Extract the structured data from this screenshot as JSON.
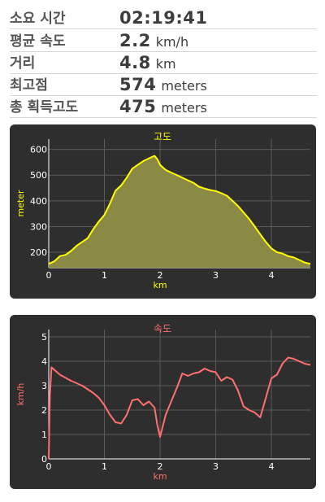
{
  "stats": [
    {
      "label": "소요 시간",
      "value": "02:19:41",
      "unit": ""
    },
    {
      "label": "평균 속도",
      "value": "2.2",
      "unit": "km/h"
    },
    {
      "label": "거리",
      "value": "4.8",
      "unit": "km"
    },
    {
      "label": "최고점",
      "value": "574",
      "unit": "meters"
    },
    {
      "label": "총 획득고도",
      "value": "475",
      "unit": "meters"
    }
  ],
  "chart_data": [
    {
      "type": "area",
      "title": "고도",
      "xlabel": "km",
      "ylabel": "meter",
      "xlim": [
        0,
        4.7
      ],
      "ylim": [
        140,
        640
      ],
      "xticks": [
        "0",
        "1",
        "2",
        "3",
        "4"
      ],
      "yticks": [
        "200",
        "300",
        "400",
        "500",
        "600"
      ],
      "grid": true,
      "colors": {
        "line": "#ffff00",
        "fill": "#8a8a45",
        "title": "#ffff00",
        "axis": "#ffff00"
      },
      "x": [
        0,
        0.1,
        0.2,
        0.3,
        0.4,
        0.5,
        0.6,
        0.7,
        0.8,
        0.9,
        1.0,
        1.1,
        1.2,
        1.3,
        1.4,
        1.5,
        1.6,
        1.7,
        1.8,
        1.9,
        1.95,
        2.0,
        2.1,
        2.2,
        2.3,
        2.4,
        2.5,
        2.6,
        2.7,
        2.8,
        2.9,
        3.0,
        3.1,
        3.2,
        3.3,
        3.4,
        3.5,
        3.6,
        3.7,
        3.8,
        3.9,
        4.0,
        4.1,
        4.2,
        4.3,
        4.4,
        4.5,
        4.6,
        4.7
      ],
      "y": [
        155,
        165,
        185,
        190,
        205,
        225,
        240,
        255,
        290,
        320,
        345,
        390,
        440,
        460,
        490,
        525,
        540,
        555,
        565,
        575,
        562,
        540,
        520,
        510,
        500,
        490,
        480,
        470,
        455,
        448,
        442,
        438,
        430,
        420,
        400,
        380,
        355,
        330,
        300,
        270,
        240,
        215,
        200,
        195,
        185,
        180,
        170,
        160,
        155
      ]
    },
    {
      "type": "line",
      "title": "속도",
      "xlabel": "km",
      "ylabel": "km/h",
      "xlim": [
        0,
        4.7
      ],
      "ylim": [
        0,
        5.3
      ],
      "xticks": [
        "0",
        "1",
        "2",
        "3",
        "4"
      ],
      "yticks": [
        "0",
        "1",
        "2",
        "3",
        "4",
        "5"
      ],
      "grid": true,
      "colors": {
        "line": "#ff7070",
        "title": "#ff7070",
        "axis": "#ff7070"
      },
      "x": [
        0,
        0.02,
        0.05,
        0.2,
        0.4,
        0.6,
        0.8,
        0.9,
        1.0,
        1.1,
        1.2,
        1.3,
        1.4,
        1.5,
        1.6,
        1.7,
        1.8,
        1.9,
        1.95,
        2.0,
        2.1,
        2.2,
        2.3,
        2.4,
        2.5,
        2.6,
        2.7,
        2.8,
        2.9,
        3.0,
        3.1,
        3.2,
        3.3,
        3.4,
        3.5,
        3.6,
        3.7,
        3.8,
        3.9,
        4.0,
        4.1,
        4.2,
        4.3,
        4.4,
        4.5,
        4.6,
        4.7
      ],
      "y": [
        0.0,
        2.6,
        3.75,
        3.45,
        3.2,
        3.0,
        2.7,
        2.5,
        2.2,
        1.8,
        1.5,
        1.45,
        1.8,
        2.4,
        2.45,
        2.2,
        2.35,
        2.1,
        1.4,
        0.9,
        1.8,
        2.35,
        2.9,
        3.5,
        3.4,
        3.5,
        3.55,
        3.7,
        3.6,
        3.55,
        3.2,
        3.35,
        3.25,
        2.8,
        2.15,
        2.0,
        1.9,
        1.7,
        2.5,
        3.3,
        3.45,
        3.9,
        4.15,
        4.1,
        4.0,
        3.9,
        3.85
      ]
    }
  ]
}
